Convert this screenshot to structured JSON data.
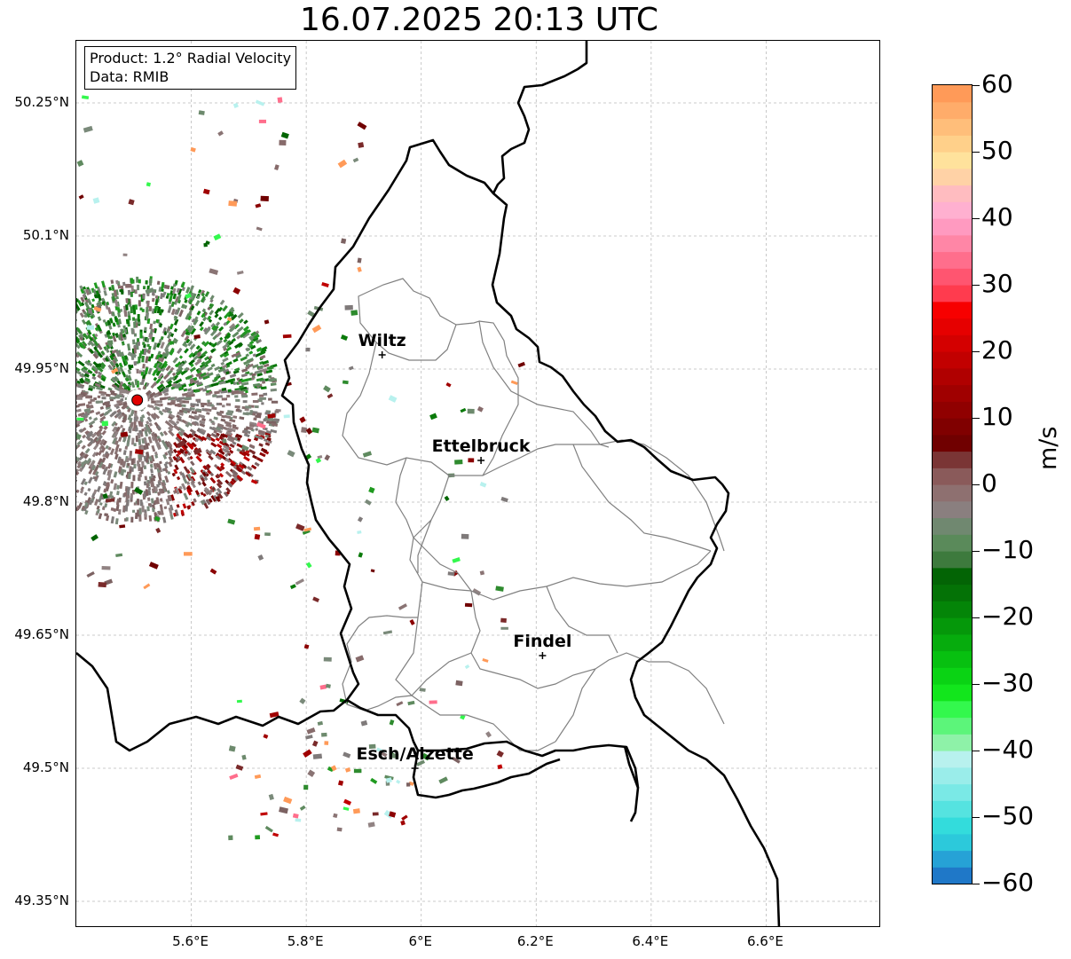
{
  "title": "16.07.2025 20:13 UTC",
  "info": {
    "product": "Product: 1.2° Radial Velocity",
    "data": "Data: RMIB"
  },
  "map": {
    "lat_range": [
      49.32,
      50.32
    ],
    "lon_range": [
      5.4,
      6.8
    ],
    "lat_ticks": [
      {
        "value": 50.25,
        "label": "50.25°N"
      },
      {
        "value": 50.1,
        "label": "50.1°N"
      },
      {
        "value": 49.95,
        "label": "49.95°N"
      },
      {
        "value": 49.8,
        "label": "49.8°N"
      },
      {
        "value": 49.65,
        "label": "49.65°N"
      },
      {
        "value": 49.5,
        "label": "49.5°N"
      },
      {
        "value": 49.35,
        "label": "49.35°N"
      }
    ],
    "lon_ticks": [
      {
        "value": 5.6,
        "label": "5.6°E"
      },
      {
        "value": 5.8,
        "label": "5.8°E"
      },
      {
        "value": 6.0,
        "label": "6°E"
      },
      {
        "value": 6.2,
        "label": "6.2°E"
      },
      {
        "value": 6.4,
        "label": "6.4°E"
      },
      {
        "value": 6.6,
        "label": "6.6°E"
      }
    ],
    "grid": true,
    "radar_site": {
      "lat": 49.915,
      "lon": 5.506
    },
    "cities": [
      {
        "name": "Wiltz",
        "lat": 49.966,
        "lon": 5.932
      },
      {
        "name": "Ettelbruck",
        "lat": 49.847,
        "lon": 6.104
      },
      {
        "name": "Findel",
        "lat": 49.627,
        "lon": 6.211
      },
      {
        "name": "Esch/Alzette",
        "lat": 49.5,
        "lon": 5.989
      }
    ],
    "border_color": "#000000",
    "canton_color": "#808080"
  },
  "colorbar": {
    "unit": "m/s",
    "min": -60,
    "max": 60,
    "ticks": [
      {
        "value": 60,
        "label": "60"
      },
      {
        "value": 50,
        "label": "50"
      },
      {
        "value": 40,
        "label": "40"
      },
      {
        "value": 30,
        "label": "30"
      },
      {
        "value": 20,
        "label": "20"
      },
      {
        "value": 10,
        "label": "10"
      },
      {
        "value": 0,
        "label": "0"
      },
      {
        "value": -10,
        "label": "−10"
      },
      {
        "value": -20,
        "label": "−20"
      },
      {
        "value": -30,
        "label": "−30"
      },
      {
        "value": -40,
        "label": "−40"
      },
      {
        "value": -50,
        "label": "−50"
      },
      {
        "value": -60,
        "label": "−60"
      }
    ],
    "colors": [
      "#1f78c8",
      "#26a2d6",
      "#2cc9db",
      "#33dcdc",
      "#55e3e0",
      "#7ae9e6",
      "#9aedea",
      "#b8f1ee",
      "#8ef2a8",
      "#5cf57a",
      "#33f84d",
      "#12e61c",
      "#0ad314",
      "#07c010",
      "#06ac0d",
      "#05980a",
      "#048508",
      "#047206",
      "#036405",
      "#3d7a3d",
      "#5a8a5a",
      "#708870",
      "#8a7f7f",
      "#8e7070",
      "#8a5a5a",
      "#7a3535",
      "#700000",
      "#800000",
      "#900000",
      "#a00000",
      "#b00000",
      "#c20000",
      "#d40000",
      "#e60000",
      "#f70000",
      "#ff3b4e",
      "#ff5570",
      "#ff6e8c",
      "#ff86a6",
      "#ff9ac0",
      "#ffb0d0",
      "#ffbcc0",
      "#ffd2a6",
      "#ffe29c",
      "#ffd08a",
      "#ffbe7a",
      "#ffac6a",
      "#ff9a58"
    ]
  }
}
